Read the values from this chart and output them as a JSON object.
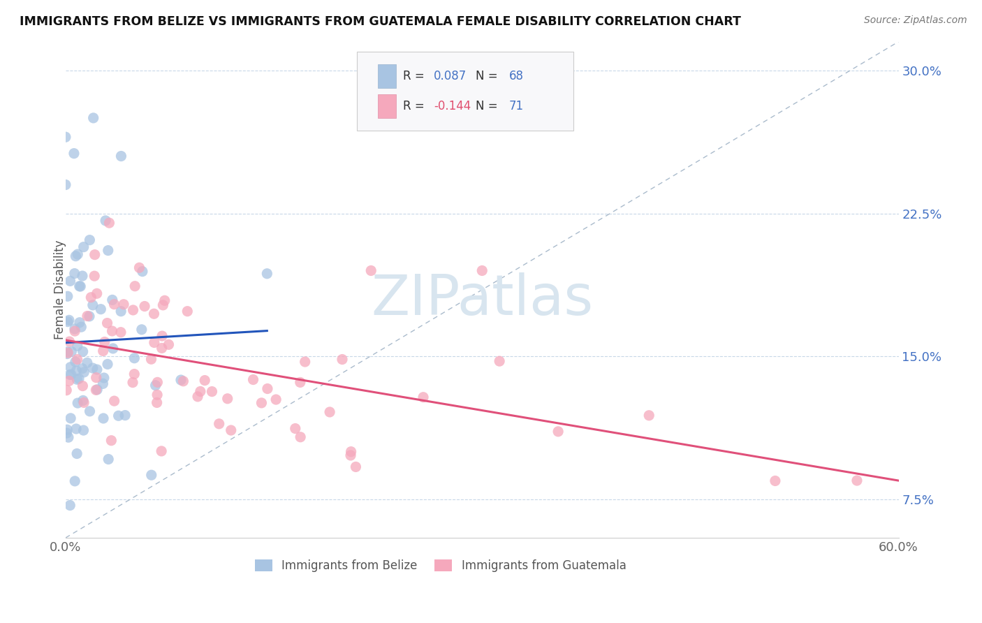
{
  "title": "IMMIGRANTS FROM BELIZE VS IMMIGRANTS FROM GUATEMALA FEMALE DISABILITY CORRELATION CHART",
  "source": "Source: ZipAtlas.com",
  "ylabel": "Female Disability",
  "xlim": [
    0.0,
    0.6
  ],
  "ylim": [
    0.055,
    0.315
  ],
  "yticks": [
    0.075,
    0.15,
    0.225,
    0.3
  ],
  "ytick_labels": [
    "7.5%",
    "15.0%",
    "22.5%",
    "30.0%"
  ],
  "xtick_labels": [
    "0.0%",
    "60.0%"
  ],
  "belize_R": 0.087,
  "belize_N": 68,
  "guatemala_R": -0.144,
  "guatemala_N": 71,
  "belize_color": "#a8c4e2",
  "guatemala_color": "#f5a8bc",
  "belize_line_color": "#2255bb",
  "guatemala_line_color": "#e0507a",
  "diagonal_color": "#aabbcc",
  "background_color": "#ffffff",
  "grid_color": "#c8d8e8",
  "watermark_color": "#d8e5ef"
}
